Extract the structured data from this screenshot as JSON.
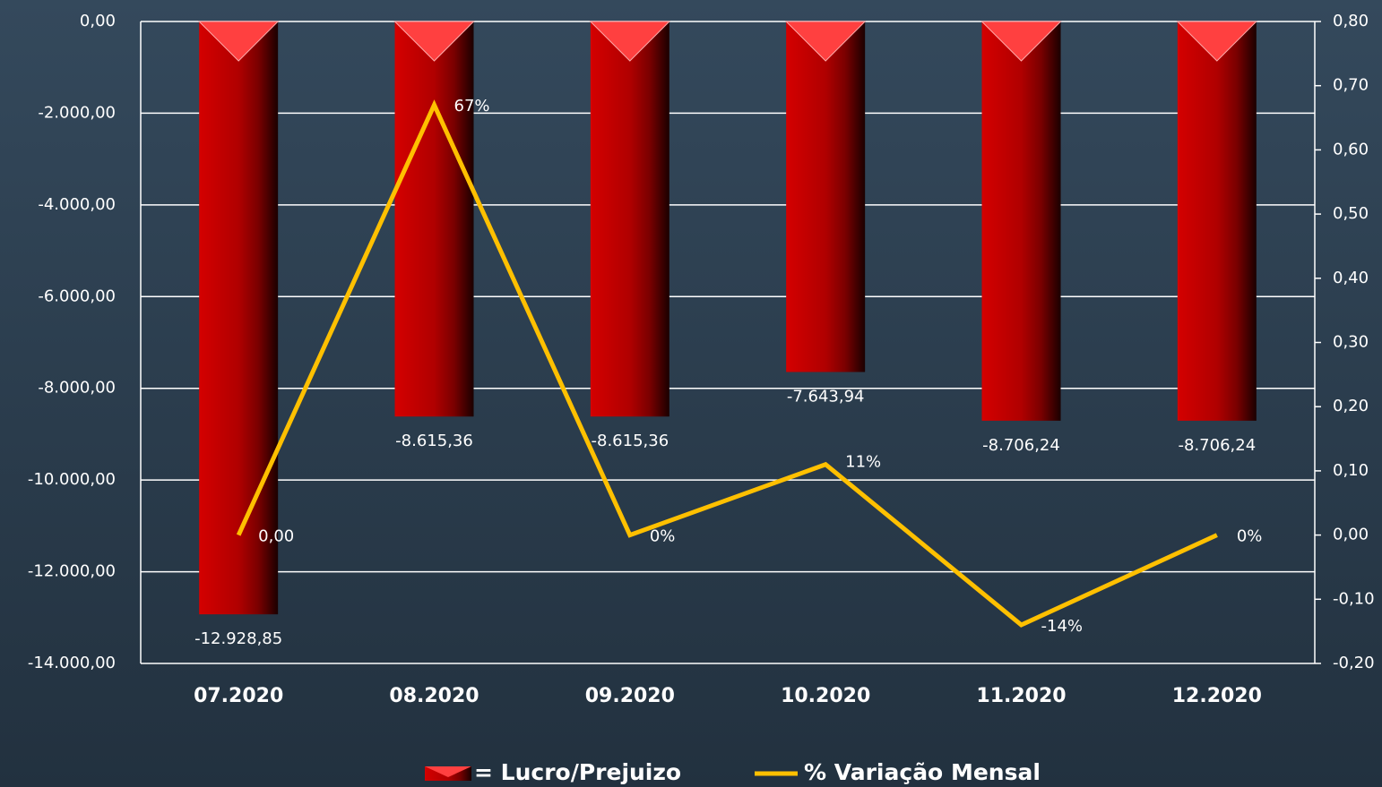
{
  "chart_data": {
    "type": "bar-line",
    "categories": [
      "07.2020",
      "08.2020",
      "09.2020",
      "10.2020",
      "11.2020",
      "12.2020"
    ],
    "series": [
      {
        "name": "= Lucro/Prejuizo",
        "type": "bar",
        "color": "#c00000",
        "values": [
          -12928.85,
          -8615.36,
          -8615.36,
          -7643.94,
          -8706.24,
          -8706.24
        ],
        "value_labels": [
          "-12.928,85",
          "-8.615,36",
          "-8.615,36",
          "-7.643,94",
          "-8.706,24",
          "-8.706,24"
        ]
      },
      {
        "name": "% Variação Mensal",
        "type": "line",
        "axis": "y2",
        "color": "#ffc000",
        "values": [
          0,
          0.67,
          0,
          0.11,
          -0.14,
          0
        ],
        "value_labels": [
          "0,00",
          "67%",
          "0%",
          "11%",
          "-14%",
          "0%"
        ]
      }
    ],
    "ylim": [
      -14000,
      0
    ],
    "yticks": [
      {
        "value": 0,
        "label": "0,00"
      },
      {
        "value": -2000,
        "label": "-2.000,00"
      },
      {
        "value": -4000,
        "label": "-4.000,00"
      },
      {
        "value": -6000,
        "label": "-6.000,00"
      },
      {
        "value": -8000,
        "label": "-8.000,00"
      },
      {
        "value": -10000,
        "label": "-10.000,00"
      },
      {
        "value": -12000,
        "label": "-12.000,00"
      },
      {
        "value": -14000,
        "label": "-14.000,00"
      }
    ],
    "y2lim": [
      -0.2,
      0.8
    ],
    "y2ticks": [
      {
        "value": 0.8,
        "label": "0,80"
      },
      {
        "value": 0.7,
        "label": "0,70"
      },
      {
        "value": 0.6,
        "label": "0,60"
      },
      {
        "value": 0.5,
        "label": "0,50"
      },
      {
        "value": 0.4,
        "label": "0,40"
      },
      {
        "value": 0.3,
        "label": "0,30"
      },
      {
        "value": 0.2,
        "label": "0,20"
      },
      {
        "value": 0.1,
        "label": "0,10"
      },
      {
        "value": 0,
        "label": "0,00"
      },
      {
        "value": -0.1,
        "label": "-0,10"
      },
      {
        "value": -0.2,
        "label": "-0,20"
      }
    ],
    "grid": true
  }
}
